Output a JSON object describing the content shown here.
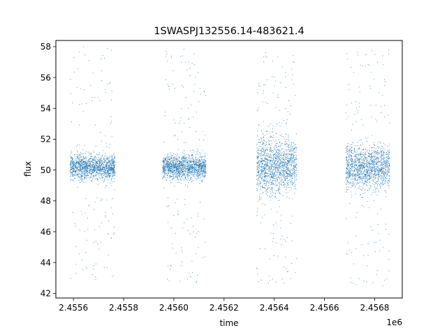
{
  "chart_data": {
    "type": "scatter",
    "title": "1SWASPJ132556.14-483621.4",
    "xlabel": "time",
    "ylabel": "flux",
    "x_offset_label": "1e6",
    "xlim": [
      2455530,
      2456910
    ],
    "ylim": [
      41.7,
      58.4
    ],
    "x_ticks": [
      2455600,
      2455800,
      2456000,
      2456200,
      2456400,
      2456600,
      2456800
    ],
    "x_tick_labels": [
      "2.4556",
      "2.4558",
      "2.4560",
      "2.4562",
      "2.4564",
      "2.4566",
      "2.4568"
    ],
    "y_ticks": [
      42,
      44,
      46,
      48,
      50,
      52,
      54,
      56,
      58
    ],
    "y_tick_labels": [
      "42",
      "44",
      "46",
      "48",
      "50",
      "52",
      "54",
      "56",
      "58"
    ],
    "grid": false,
    "legend": "none",
    "marker_color": "#1f77b4",
    "series": [
      {
        "segments": [
          {
            "x_range": [
              2455587,
              2455766
            ],
            "center": 50.2,
            "core_spread": 0.55,
            "outlier_range": [
              42.7,
              58.0
            ]
          },
          {
            "x_range": [
              2455955,
              2456128
            ],
            "center": 50.2,
            "core_spread": 0.55,
            "outlier_range": [
              42.5,
              58.0
            ]
          },
          {
            "x_range": [
              2456330,
              2456490
            ],
            "center": 50.3,
            "core_spread": 1.3,
            "outlier_range": [
              42.5,
              58.0
            ]
          },
          {
            "x_range": [
              2456685,
              2456860
            ],
            "center": 50.2,
            "core_spread": 1.0,
            "outlier_range": [
              42.5,
              57.8
            ]
          }
        ]
      }
    ]
  }
}
